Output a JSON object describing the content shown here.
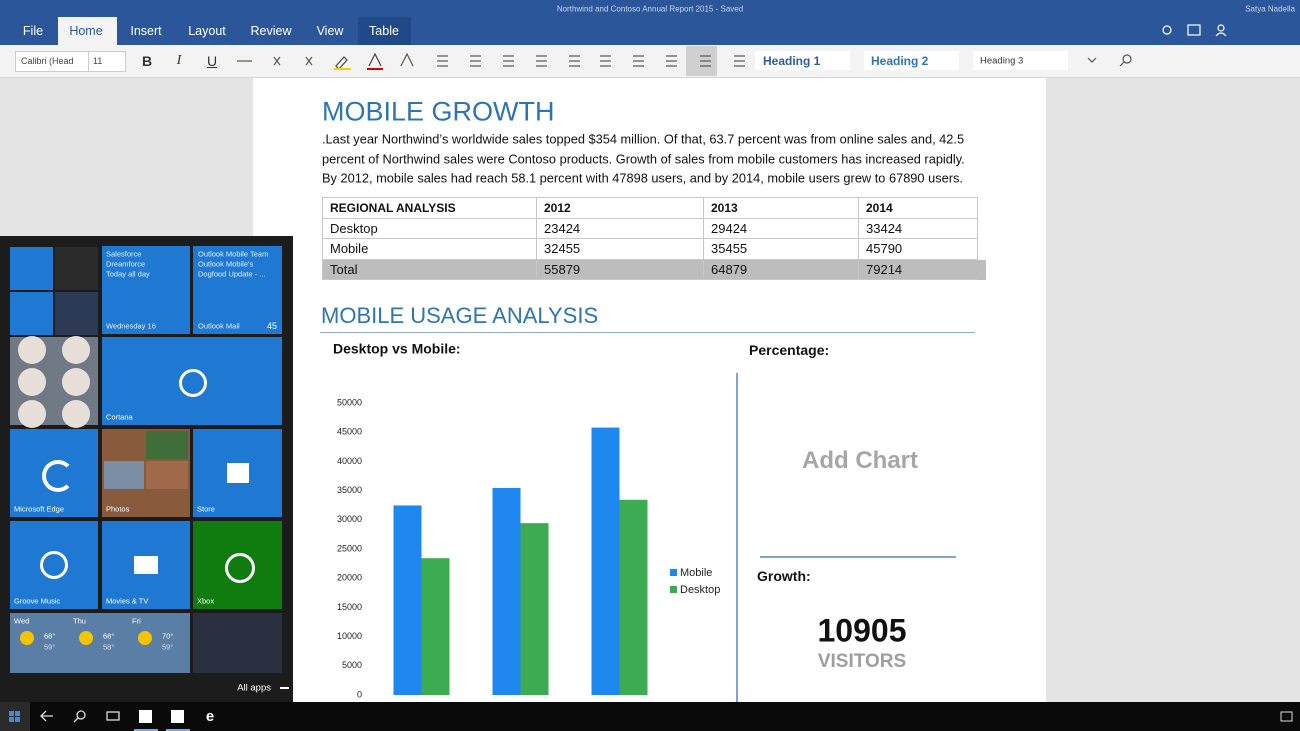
{
  "window": {
    "title": "Northwind and Contoso Annual Report 2015 - Saved",
    "user": "Satya Nadella"
  },
  "ribbon": {
    "tabs": [
      "File",
      "Home",
      "Insert",
      "Layout",
      "Review",
      "View",
      "Table"
    ],
    "font": "Calibri (Head",
    "font_size": "11",
    "format_buttons": [
      "B",
      "I",
      "U"
    ],
    "styles": [
      "Heading 1",
      "Heading 2",
      "Heading 3"
    ]
  },
  "document": {
    "heading": "MOBILE GROWTH",
    "paragraph": [
      ".Last year Northwind’s worldwide sales topped $354 million. Of that, 63.7 percent was from online sales and, 42.5",
      "percent of Northwind sales were Contoso products. Growth of sales from mobile customers has increased rapidly.",
      "By 2012, mobile sales had reach 58.1 percent with 47898 users, and by 2014, mobile users grew to 67890 users."
    ],
    "table": {
      "header": [
        "REGIONAL ANALYSIS",
        "2012",
        "2013",
        "2014"
      ],
      "rows": [
        [
          "Desktop",
          23424,
          29424,
          33424
        ],
        [
          "Mobile",
          32455,
          35455,
          45790
        ],
        [
          "Total",
          55879,
          64879,
          79214
        ]
      ]
    },
    "section_heading": "MOBILE USAGE ANALYSIS",
    "percentage_label": "Percentage:",
    "add_chart": "Add Chart",
    "growth_label": "Growth:",
    "growth_value": 10905,
    "growth_unit": "VISITORS"
  },
  "chart_data": {
    "type": "bar",
    "title": "Desktop vs Mobile:",
    "categories": [
      null,
      null,
      null
    ],
    "series": [
      {
        "name": "Mobile",
        "color": "#1e88f0",
        "values": [
          32455,
          35455,
          45790
        ]
      },
      {
        "name": "Desktop",
        "color": "#3dab52",
        "values": [
          23424,
          29424,
          33424
        ]
      }
    ],
    "ylim": [
      0,
      50000
    ],
    "yticks": [
      0,
      5000,
      10000,
      15000,
      20000,
      25000,
      30000,
      35000,
      40000,
      45000,
      50000
    ],
    "grid": false,
    "legend": "right"
  },
  "start_menu": {
    "calendar": {
      "lines": [
        "Salesforce",
        "Dreamforce",
        "Today all day"
      ],
      "footer": "Wednesday 16"
    },
    "mail": {
      "lines": [
        "Outlook Mobile Team",
        "Outlook Mobile's",
        "Dogfood Update - ..."
      ],
      "footer": "Outlook Mail",
      "count": "45"
    },
    "tiles": [
      "Cortana",
      "Microsoft Edge",
      "Photos",
      "Store",
      "Groove Music",
      "Movies & TV",
      "Xbox"
    ],
    "weather": [
      {
        "day": "Wed",
        "high": "68°",
        "low": "59°"
      },
      {
        "day": "Thu",
        "high": "68°",
        "low": "58°"
      },
      {
        "day": "Fri",
        "high": "70°",
        "low": "59°"
      }
    ],
    "all_apps": "All apps"
  }
}
